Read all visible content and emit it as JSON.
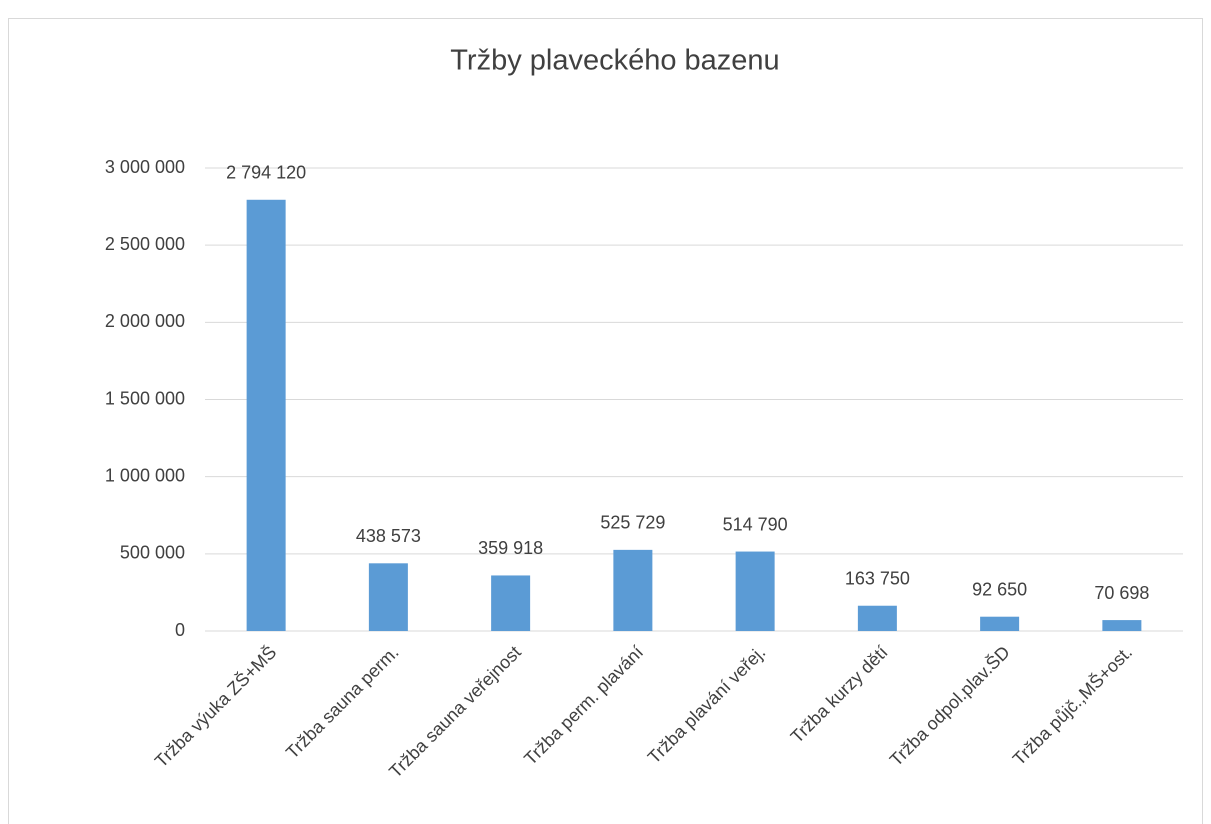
{
  "chart_data": {
    "type": "bar",
    "title": "Tržby plaveckého bazenu",
    "categories": [
      "Tržba výuka ZŠ+MŠ",
      "Tržba sauna perm.",
      "Tržba sauna veřejnost",
      "Tržba perm. plavání",
      "Tržba plavání veřej.",
      "Tržba kurzy dětí",
      "Tržba odpol.plav.ŠD",
      "Tržba půjč.,MŠ+ost."
    ],
    "values": [
      2794120,
      438573,
      359918,
      525729,
      514790,
      163750,
      92650,
      70698
    ],
    "value_labels": [
      "2 794 120",
      "438 573",
      "359 918",
      "525 729",
      "514 790",
      "163 750",
      "92 650",
      "70 698"
    ],
    "color": "#5b9bd5",
    "ylim": [
      0,
      3000000
    ],
    "yticks": [
      0,
      {
        "value": 500000,
        "label": "500 000"
      },
      {
        "value": 1000000,
        "label": "1 000 000"
      },
      {
        "value": 1500000,
        "label": "1 500 000"
      },
      {
        "value": 2000000,
        "label": "2 000 000"
      },
      {
        "value": 2500000,
        "label": "2 500 000"
      },
      {
        "value": 3000000,
        "label": "3 000 000"
      }
    ],
    "grid": true
  }
}
